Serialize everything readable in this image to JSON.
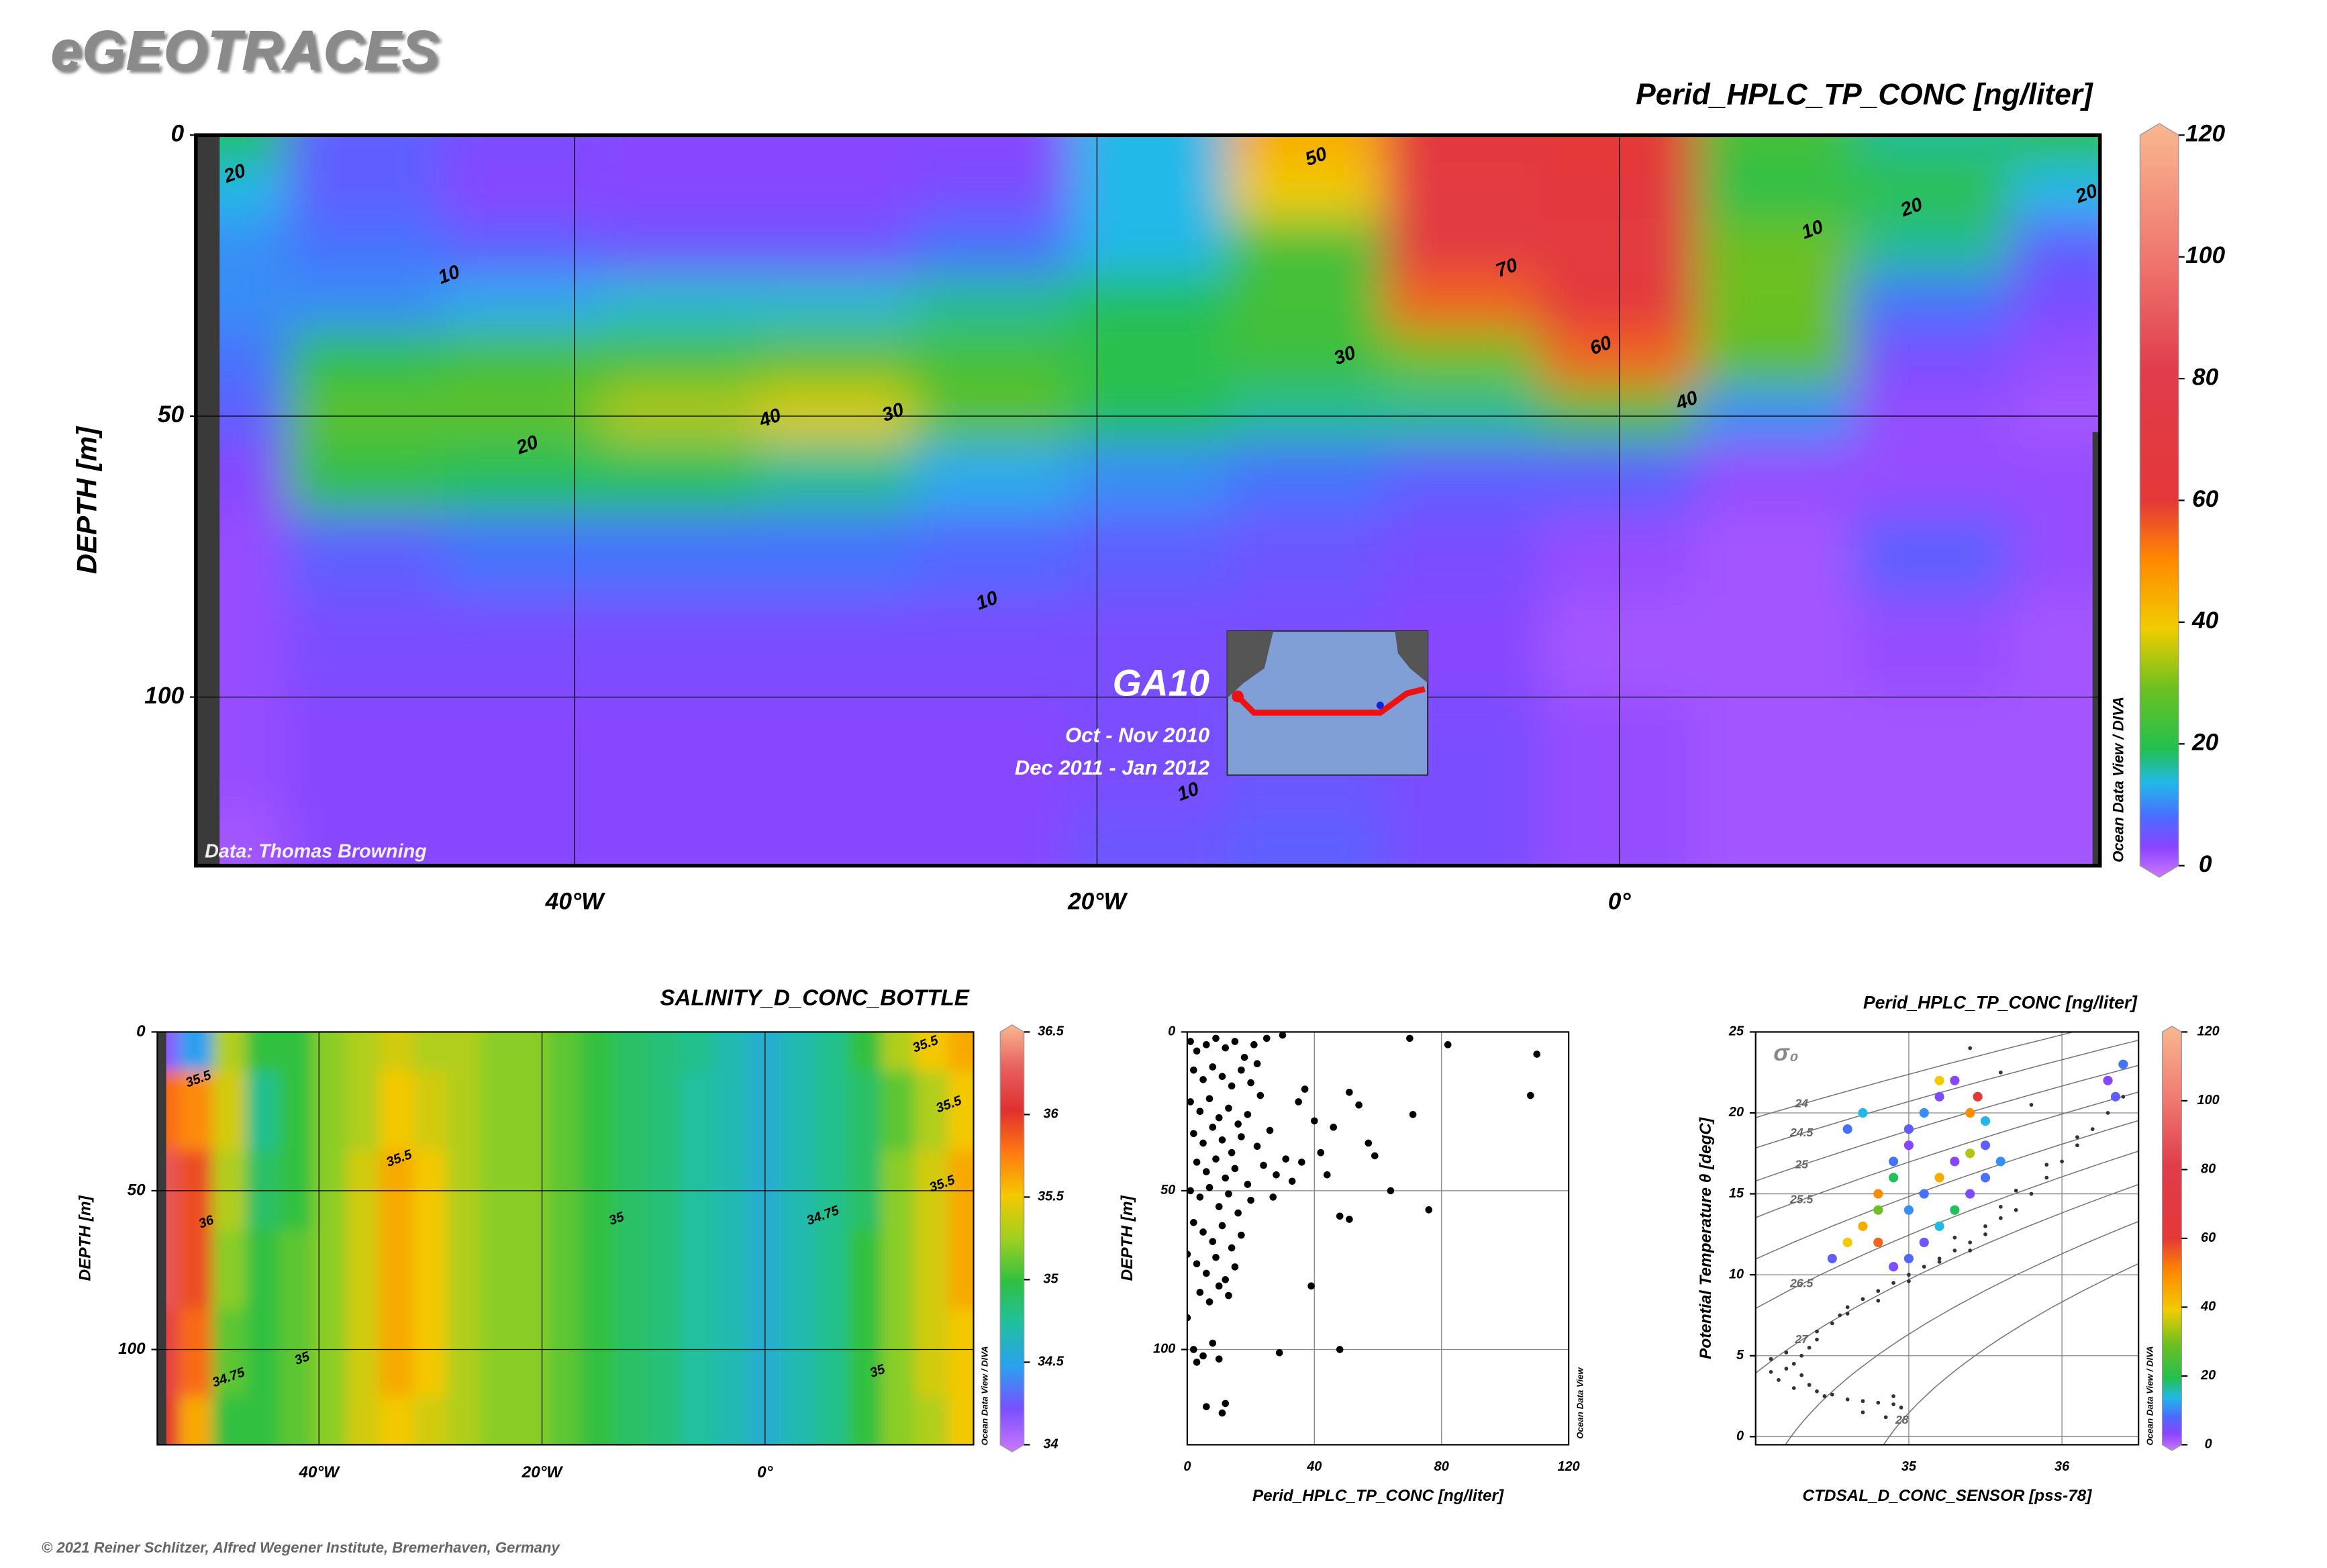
{
  "header": {
    "title": "eGEOTRACES"
  },
  "footer": {
    "copyright": "© 2021 Reiner Schlitzer, Alfred Wegener Institute, Bremerhaven, Germany"
  },
  "chart_data": [
    {
      "type": "section",
      "title": "Perid_HPLC_TP_CONC [ng/liter]",
      "ylabel": "DEPTH [m]",
      "xlim": [
        -54.5,
        18.4
      ],
      "ylim": [
        130,
        0
      ],
      "xticks": [
        {
          "value": -40,
          "label": "40°W"
        },
        {
          "value": -20,
          "label": "20°W"
        },
        {
          "value": 0,
          "label": "0°"
        }
      ],
      "yticks": [
        0,
        50,
        100
      ],
      "grid": true,
      "field": {
        "x": [
          -54,
          -48,
          -42,
          -36,
          -30,
          -24,
          -18,
          -12,
          -6,
          0,
          6,
          12,
          18
        ],
        "y": [
          0,
          10,
          20,
          30,
          40,
          50,
          60,
          75,
          90,
          110,
          130
        ],
        "values": [
          [
            20,
            8,
            6,
            5,
            5,
            5,
            15,
            45,
            65,
            60,
            25,
            18,
            22
          ],
          [
            15,
            8,
            5,
            5,
            5,
            6,
            15,
            40,
            70,
            65,
            22,
            22,
            15
          ],
          [
            12,
            10,
            8,
            7,
            7,
            10,
            15,
            25,
            70,
            68,
            30,
            18,
            8
          ],
          [
            12,
            12,
            14,
            16,
            16,
            18,
            20,
            25,
            55,
            65,
            30,
            10,
            6
          ],
          [
            10,
            22,
            25,
            25,
            28,
            25,
            22,
            24,
            30,
            55,
            28,
            6,
            4
          ],
          [
            8,
            28,
            28,
            35,
            38,
            28,
            20,
            18,
            18,
            25,
            12,
            4,
            3
          ],
          [
            5,
            22,
            20,
            20,
            18,
            14,
            12,
            10,
            8,
            8,
            4,
            4,
            4
          ],
          [
            4,
            8,
            10,
            10,
            10,
            9,
            8,
            7,
            6,
            4,
            3,
            8,
            4
          ],
          [
            4,
            6,
            6,
            6,
            6,
            6,
            6,
            6,
            5,
            3,
            3,
            4,
            3
          ],
          [
            4,
            5,
            5,
            5,
            5,
            5,
            6,
            7,
            6,
            4,
            3,
            3,
            3
          ],
          [
            3,
            5,
            5,
            5,
            5,
            5,
            7,
            8,
            6,
            4,
            3,
            3,
            3
          ]
        ]
      },
      "contour_labels": {
        "x": [
          -53.0,
          -44.8,
          -32.5,
          -27.8,
          -41.8,
          -24.2,
          -11.6,
          -10.5,
          -4.3,
          -0.7,
          2.6,
          7.4,
          11.2,
          17.9,
          -16.5
        ],
        "y": [
          7,
          25,
          50.5,
          49.5,
          55.3,
          83,
          4,
          39.4,
          23.8,
          37.6,
          47.4,
          17,
          13,
          10.6,
          117
        ],
        "values": [
          20,
          10,
          40,
          30,
          20,
          10,
          50,
          30,
          70,
          60,
          40,
          10,
          20,
          20,
          10
        ]
      },
      "colorbar": {
        "lim": [
          0,
          120
        ],
        "ticks": [
          0,
          20,
          40,
          60,
          80,
          100,
          120
        ],
        "stops": [
          0,
          0.04,
          0.08,
          0.125,
          0.17,
          0.25,
          0.33,
          0.42,
          0.5,
          0.67,
          0.83,
          1
        ],
        "colors": [
          "#cc77ff",
          "#8a44ff",
          "#4a6cff",
          "#22b8e8",
          "#22c050",
          "#6cc020",
          "#f0cc00",
          "#ff8a00",
          "#e43838",
          "#e03c4c",
          "#f07a70",
          "#f8b890"
        ]
      },
      "annotations": {
        "section": "GA10",
        "period_1": "Oct - Nov 2010",
        "period_2": "Dec 2011 - Jan 2012",
        "credit": "Data: Thomas Browning",
        "software": "Ocean Data View / DIVA"
      }
    },
    {
      "type": "section",
      "title": "SALINITY_D_CONC_BOTTLE",
      "ylabel": "DEPTH [m]",
      "xlim": [
        -54.5,
        18.7
      ],
      "ylim": [
        130,
        0
      ],
      "xticks": [
        {
          "value": -40,
          "label": "40°W"
        },
        {
          "value": -20,
          "label": "20°W"
        },
        {
          "value": 0,
          "label": "0°"
        }
      ],
      "yticks": [
        0,
        50,
        100
      ],
      "grid": true,
      "field": {
        "x": [
          -54,
          -51,
          -48,
          -45,
          -42,
          -39,
          -36,
          -33,
          -30,
          -27,
          -24,
          -21,
          -18,
          -15,
          -12,
          -9,
          -6,
          -3,
          0,
          3,
          6,
          9,
          12,
          15,
          18
        ],
        "y": [
          0,
          25,
          50,
          75,
          100,
          130
        ],
        "values": [
          [
            34.2,
            34.5,
            35.3,
            35.0,
            35.0,
            35.2,
            35.3,
            35.4,
            35.3,
            35.3,
            35.2,
            35.2,
            35.1,
            35.0,
            34.9,
            34.85,
            34.8,
            34.7,
            34.6,
            34.7,
            34.8,
            35.0,
            35.3,
            35.5,
            35.6
          ],
          [
            35.8,
            35.7,
            35.4,
            34.8,
            35.0,
            35.2,
            35.3,
            35.5,
            35.4,
            35.3,
            35.2,
            35.2,
            35.1,
            35.0,
            34.9,
            34.85,
            34.75,
            34.7,
            34.6,
            34.7,
            34.8,
            34.9,
            35.1,
            35.3,
            35.5
          ],
          [
            36.2,
            35.9,
            35.3,
            34.9,
            35.0,
            35.2,
            35.4,
            35.6,
            35.5,
            35.3,
            35.2,
            35.2,
            35.1,
            35.0,
            34.9,
            34.85,
            34.75,
            34.7,
            34.6,
            34.7,
            34.8,
            34.9,
            35.2,
            35.4,
            35.6
          ],
          [
            36.2,
            35.9,
            35.2,
            35.0,
            35.1,
            35.2,
            35.4,
            35.6,
            35.5,
            35.3,
            35.2,
            35.2,
            35.1,
            35.0,
            34.9,
            34.85,
            34.75,
            34.7,
            34.6,
            34.7,
            34.8,
            35.0,
            35.2,
            35.4,
            35.6
          ],
          [
            36.1,
            35.8,
            35.1,
            35.0,
            35.1,
            35.2,
            35.4,
            35.6,
            35.5,
            35.3,
            35.2,
            35.2,
            35.1,
            35.0,
            34.9,
            34.85,
            34.75,
            34.7,
            34.6,
            34.7,
            34.8,
            35.0,
            35.2,
            35.4,
            35.5
          ],
          [
            36.0,
            35.6,
            35.0,
            35.0,
            35.1,
            35.2,
            35.4,
            35.5,
            35.4,
            35.3,
            35.2,
            35.2,
            35.1,
            35.0,
            34.9,
            34.85,
            34.75,
            34.7,
            34.6,
            34.7,
            34.8,
            35.0,
            35.2,
            35.3,
            35.5
          ]
        ]
      },
      "contour_labels": {
        "x": [
          -50.8,
          -50.1,
          -48.1,
          -41.5,
          -32.8,
          -13.3,
          5.2,
          10.1,
          14.4,
          16.5,
          15.9
        ],
        "y": [
          15,
          60,
          109,
          103,
          40,
          59,
          58,
          107,
          4,
          23,
          48
        ],
        "values": [
          35.5,
          36,
          34.75,
          35,
          35.5,
          35,
          34.75,
          35,
          35.5,
          35.5,
          35.5
        ]
      },
      "colorbar": {
        "lim": [
          34,
          36.5
        ],
        "ticks": [
          34,
          34.5,
          35,
          35.5,
          36,
          36.5
        ],
        "stops": [
          0,
          0.1,
          0.2,
          0.3,
          0.4,
          0.5,
          0.6,
          0.7,
          0.8,
          0.9,
          1
        ],
        "colors": [
          "#cc77ff",
          "#7a50ff",
          "#2aa0f0",
          "#20c0a0",
          "#30c040",
          "#a0d020",
          "#f4c800",
          "#ff7a10",
          "#e03030",
          "#e86060",
          "#f8b890"
        ]
      },
      "annotations": {
        "software": "Ocean Data View / DIVA"
      }
    },
    {
      "type": "scatter",
      "xlabel": "Perid_HPLC_TP_CONC [ng/liter]",
      "ylabel": "DEPTH [m]",
      "xlim": [
        0,
        120
      ],
      "ylim": [
        130,
        0
      ],
      "xticks": [
        0,
        40,
        80,
        120
      ],
      "yticks": [
        0,
        50,
        100
      ],
      "grid": true,
      "color": "#000000",
      "x": [
        70,
        82,
        110,
        108,
        71,
        64,
        76,
        30,
        25,
        37,
        51,
        54,
        57,
        59,
        48,
        51,
        39,
        29,
        48,
        12,
        6,
        11,
        1,
        3,
        6,
        9,
        12,
        15,
        18,
        21,
        2,
        5,
        8,
        11,
        14,
        17,
        20,
        23,
        1,
        4,
        7,
        10,
        13,
        16,
        19,
        2,
        5,
        8,
        11,
        14,
        17,
        22,
        26,
        3,
        6,
        9,
        12,
        15,
        19,
        24,
        1,
        4,
        7,
        10,
        13,
        16,
        20,
        28,
        33,
        36,
        2,
        5,
        8,
        11,
        14,
        17,
        0,
        3,
        6,
        9,
        12,
        15,
        4,
        7,
        10,
        13,
        0,
        2,
        5,
        8,
        3,
        10,
        42,
        44,
        31,
        27,
        40,
        46,
        35,
        22
      ],
      "values": [
        2,
        4,
        7,
        20,
        26,
        50,
        56,
        1,
        2,
        18,
        19,
        23,
        35,
        39,
        58,
        59,
        80,
        101,
        100,
        117,
        118,
        120,
        3,
        6,
        4,
        2,
        5,
        3,
        8,
        4,
        12,
        15,
        11,
        14,
        17,
        12,
        16,
        20,
        22,
        25,
        21,
        27,
        24,
        29,
        26,
        32,
        35,
        30,
        34,
        38,
        33,
        36,
        31,
        41,
        44,
        40,
        46,
        43,
        48,
        42,
        50,
        52,
        49,
        55,
        51,
        57,
        53,
        45,
        47,
        41,
        60,
        63,
        66,
        61,
        68,
        64,
        70,
        73,
        76,
        71,
        78,
        74,
        82,
        85,
        80,
        83,
        90,
        100,
        102,
        98,
        104,
        103,
        38,
        45,
        40,
        52,
        28,
        30,
        22,
        10
      ],
      "annotations": {
        "software": "Ocean Data View"
      }
    },
    {
      "type": "ts",
      "title": "Perid_HPLC_TP_CONC [ng/liter]",
      "xlabel": "CTDSAL_D_CONC_SENSOR [pss-78]",
      "ylabel": "Potential Temperature θ [degC]",
      "xlim": [
        34,
        36.5
      ],
      "ylim": [
        -0.5,
        25
      ],
      "xticks": [
        35,
        36
      ],
      "yticks": [
        0,
        5,
        10,
        15,
        20,
        25
      ],
      "grid": true,
      "background": {
        "color": "#333333",
        "x": [
          34.1,
          34.15,
          34.2,
          34.25,
          34.3,
          34.35,
          34.4,
          34.45,
          34.5,
          34.6,
          34.7,
          34.8,
          34.9,
          34.95,
          34.9,
          34.85,
          34.7,
          34.3,
          34.4,
          34.5,
          34.55,
          34.6,
          34.7,
          34.8,
          34.9,
          35.0,
          35.1,
          35.2,
          35.3,
          35.4,
          35.5,
          35.6,
          35.7,
          35.8,
          35.9,
          36.0,
          36.1,
          36.2,
          36.3,
          36.4,
          35.5,
          35.6,
          35.4,
          35.2,
          35.0,
          34.8,
          34.6,
          34.4,
          34.2,
          34.1,
          34.25,
          34.35,
          35.3,
          35.7,
          35.9,
          36.1,
          35.8,
          35.6,
          35.4
        ],
        "values": [
          4,
          3.5,
          4.2,
          3,
          3.8,
          3.2,
          2.8,
          2.5,
          2.6,
          2.3,
          2.2,
          2.1,
          2,
          1.8,
          2.5,
          1.2,
          1.5,
          5,
          6,
          7,
          7.5,
          8,
          8.5,
          9,
          9.5,
          10,
          10.5,
          11,
          11.5,
          12,
          12.5,
          13.5,
          14,
          15,
          16,
          17,
          18,
          19,
          20,
          21,
          13,
          14.2,
          11.5,
          10.8,
          9.6,
          8.4,
          7.6,
          6.5,
          5.2,
          4.8,
          4.5,
          5.5,
          12.3,
          15.2,
          16.8,
          18.5,
          20.5,
          22.5,
          24
        ]
      },
      "points": {
        "x": [
          34.6,
          34.7,
          34.5,
          34.6,
          34.7,
          34.8,
          34.8,
          34.9,
          34.9,
          35.0,
          35.0,
          35.1,
          35.2,
          35.2,
          35.3,
          35.4,
          35.5,
          35.5,
          35.4,
          35.3,
          35.2,
          35.1,
          35.0,
          34.9,
          35.6,
          35.5,
          35.45,
          35.3,
          35.1,
          35.0,
          36.3,
          36.35,
          36.4,
          34.8,
          35.2,
          35.4
        ],
        "values": [
          19,
          20,
          11,
          12,
          13,
          14,
          15,
          16,
          17,
          18,
          19,
          20,
          21,
          22,
          22,
          20,
          18,
          16,
          15,
          14,
          13,
          12,
          11,
          10.5,
          17,
          19.5,
          21,
          17,
          15,
          14,
          22,
          21,
          23,
          12,
          16,
          17.5
        ],
        "z": [
          10,
          15,
          8,
          40,
          45,
          30,
          50,
          20,
          10,
          5,
          8,
          12,
          6,
          40,
          5,
          50,
          8,
          10,
          6,
          20,
          15,
          7,
          9,
          6,
          12,
          15,
          60,
          5,
          10,
          12,
          5,
          8,
          10,
          55,
          45,
          35
        ]
      },
      "isopycnals": {
        "label": "σ₀",
        "values": [
          24,
          24.5,
          25,
          25.5,
          26,
          26.5,
          27,
          27.5,
          28
        ],
        "labeled": [
          true,
          true,
          true,
          true,
          false,
          true,
          true,
          false,
          true
        ]
      },
      "colorbar": {
        "lim": [
          0,
          120
        ],
        "ticks": [
          0,
          20,
          40,
          60,
          80,
          100,
          120
        ],
        "stops": [
          0,
          0.04,
          0.08,
          0.125,
          0.17,
          0.25,
          0.33,
          0.42,
          0.5,
          0.67,
          0.83,
          1
        ],
        "colors": [
          "#cc77ff",
          "#8a44ff",
          "#4a6cff",
          "#22b8e8",
          "#22c050",
          "#6cc020",
          "#f0cc00",
          "#ff8a00",
          "#e43838",
          "#e03c4c",
          "#f07a70",
          "#f8b890"
        ]
      },
      "annotations": {
        "software": "Ocean Data View / DIVA"
      }
    }
  ]
}
